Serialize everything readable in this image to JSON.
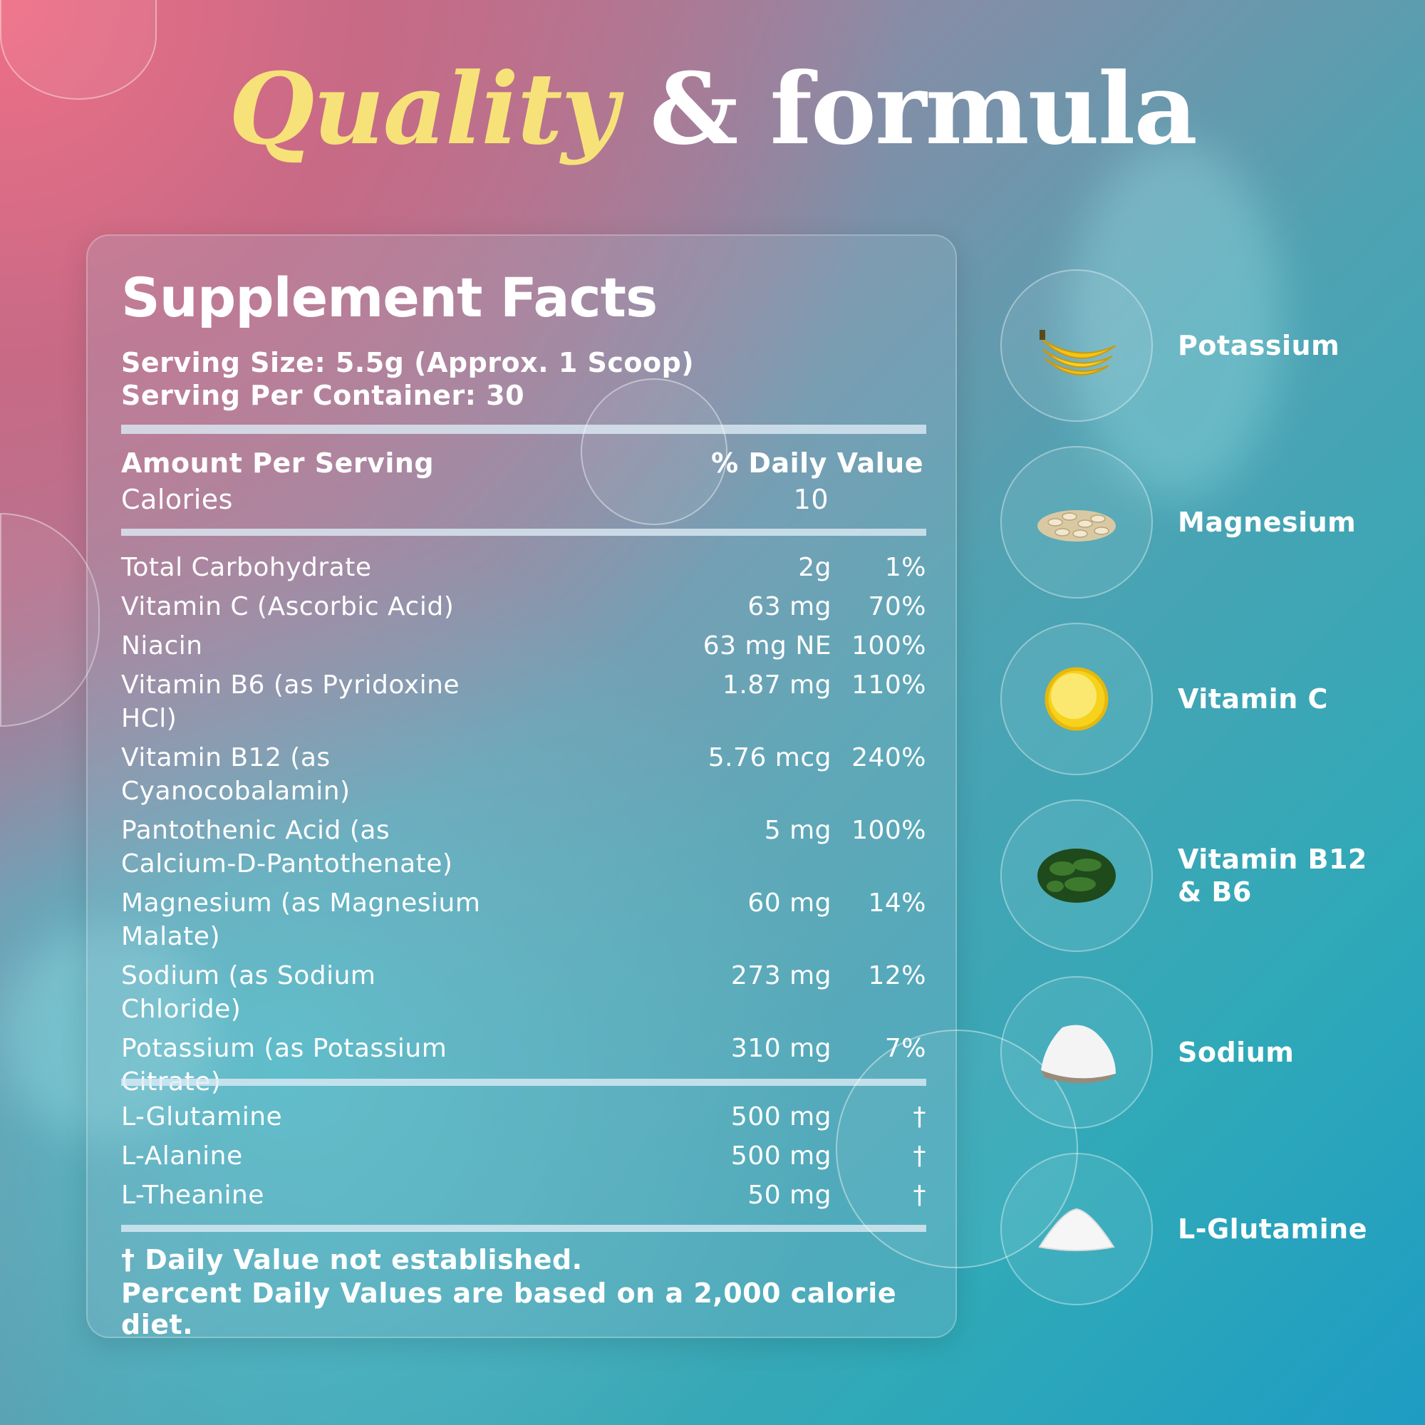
{
  "title": {
    "part1": "Quality",
    "part2": "& formula"
  },
  "colors": {
    "title_accent": "#f7e27a",
    "text": "#ffffff"
  },
  "facts": {
    "heading": "Supplement Facts",
    "serving_size": "Serving Size: 5.5g (Approx. 1 Scoop)",
    "servings_per_container": "Serving Per Container: 30",
    "amount_header": "Amount Per Serving",
    "dv_header": "% Daily Value",
    "calories_label": "Calories",
    "calories_value": "10",
    "nutrients": [
      {
        "name": "Total Carbohydrate",
        "amount": "2g",
        "dv": "1%"
      },
      {
        "name": "Vitamin C (Ascorbic Acid)",
        "amount": "63 mg",
        "dv": "70%"
      },
      {
        "name": "Niacin",
        "amount": "63 mg NE",
        "dv": "100%"
      },
      {
        "name": "Vitamin B6 (as Pyridoxine HCl)",
        "amount": "1.87 mg",
        "dv": "110%"
      },
      {
        "name": "Vitamin B12 (as Cyanocobalamin)",
        "amount": "5.76 mcg",
        "dv": "240%"
      },
      {
        "name": "Pantothenic Acid (as Calcium-D-Pantothenate)",
        "amount": "5 mg",
        "dv": "100%"
      },
      {
        "name": "Magnesium (as Magnesium Malate)",
        "amount": "60 mg",
        "dv": "14%"
      },
      {
        "name": "Sodium (as Sodium Chloride)",
        "amount": "273 mg",
        "dv": "12%"
      },
      {
        "name": "Potassium (as Potassium Citrate)",
        "amount": "310 mg",
        "dv": "7%"
      }
    ],
    "amino_acids": [
      {
        "name": "L-Glutamine",
        "amount": "500 mg",
        "dv": "†"
      },
      {
        "name": "L-Alanine",
        "amount": "500 mg",
        "dv": "†"
      },
      {
        "name": "L-Theanine",
        "amount": "50 mg",
        "dv": "†"
      }
    ],
    "footnote1": "† Daily Value not established.",
    "footnote2": "Percent Daily Values are based on a 2,000 calorie diet."
  },
  "ingredients": [
    {
      "label": "Potassium",
      "icon": "banana-icon"
    },
    {
      "label": "Magnesium",
      "icon": "seeds-icon"
    },
    {
      "label": "Vitamin C",
      "icon": "lemon-icon"
    },
    {
      "label": "Vitamin B12 & B6",
      "icon": "leafy-greens-icon"
    },
    {
      "label": "Sodium",
      "icon": "salt-icon"
    },
    {
      "label": "L-Glutamine",
      "icon": "powder-icon"
    }
  ]
}
